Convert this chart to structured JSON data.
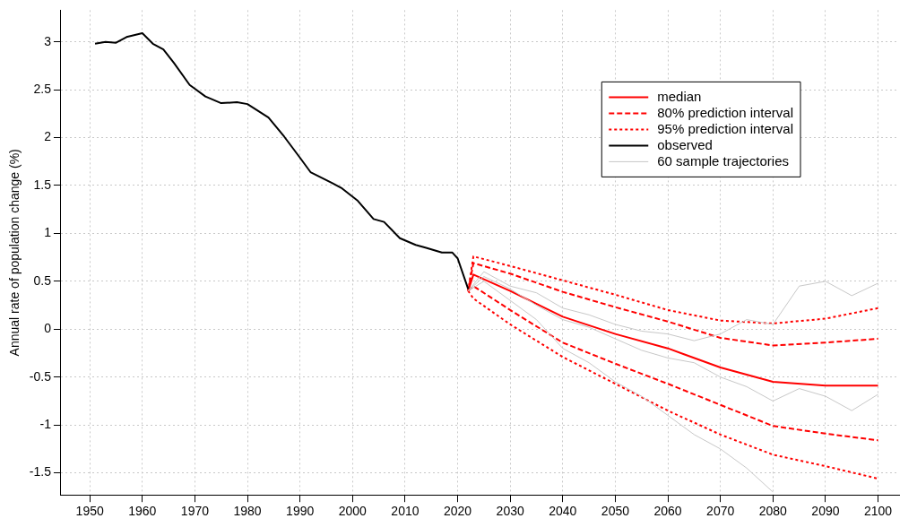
{
  "chart_data": {
    "type": "line",
    "ylabel": "Annual rate of population change (%)",
    "xlim": [
      1944.5,
      2104
    ],
    "xticks": [
      1950,
      1960,
      1970,
      1980,
      1990,
      2000,
      2010,
      2020,
      2030,
      2040,
      2050,
      2060,
      2070,
      2080,
      2090,
      2100
    ],
    "ylim": [
      -1.73,
      3.33
    ],
    "yticks": [
      -1.5,
      -1,
      -0.5,
      0,
      0.5,
      1,
      1.5,
      2,
      2.5,
      3
    ],
    "grid": true,
    "legend": "top right",
    "marker": "none",
    "series": [
      {
        "name": "median",
        "color": "#ff0000",
        "line_style": "solid",
        "x": [
          2022,
          2023,
          2030,
          2040,
          2050,
          2060,
          2070,
          2080,
          2090,
          2100
        ],
        "values": [
          0.4,
          0.57,
          0.4,
          0.13,
          -0.05,
          -0.2,
          -0.4,
          -0.55,
          -0.59,
          -0.59
        ]
      },
      {
        "name": "80% prediction interval",
        "color": "#ff0000",
        "line_style": "dashed",
        "x": [
          2022,
          2023,
          2030,
          2040,
          2050,
          2060,
          2070,
          2080,
          2090,
          2100
        ],
        "values": [
          0.4,
          0.69,
          0.58,
          0.39,
          0.23,
          0.08,
          -0.09,
          -0.17,
          -0.14,
          -0.1
        ]
      },
      {
        "color": "#ff0000",
        "line_style": "dashed",
        "x": [
          2022,
          2023,
          2030,
          2040,
          2050,
          2060,
          2070,
          2080,
          2090,
          2100
        ],
        "values": [
          0.4,
          0.45,
          0.2,
          -0.14,
          -0.36,
          -0.57,
          -0.79,
          -1.01,
          -1.09,
          -1.16
        ]
      },
      {
        "name": "95% prediction interval",
        "color": "#ff0000",
        "line_style": "dotted",
        "x": [
          2022,
          2023,
          2030,
          2040,
          2050,
          2060,
          2070,
          2080,
          2090,
          2100
        ],
        "values": [
          0.4,
          0.76,
          0.66,
          0.51,
          0.36,
          0.2,
          0.09,
          0.06,
          0.11,
          0.22
        ]
      },
      {
        "color": "#ff0000",
        "line_style": "dotted",
        "x": [
          2022,
          2023,
          2030,
          2040,
          2050,
          2060,
          2070,
          2080,
          2090,
          2100
        ],
        "values": [
          0.4,
          0.32,
          0.05,
          -0.29,
          -0.57,
          -0.85,
          -1.1,
          -1.31,
          -1.43,
          -1.56
        ]
      },
      {
        "name": "observed",
        "color": "#000000",
        "line_style": "solid",
        "x": [
          1951,
          1953,
          1955,
          1957,
          1960,
          1962,
          1964,
          1966,
          1969,
          1972,
          1975,
          1978,
          1980,
          1984,
          1987,
          1990,
          1992,
          1996,
          1998,
          2001,
          2004,
          2006,
          2009,
          2012,
          2014,
          2017,
          2019,
          2020,
          2022
        ],
        "values": [
          2.98,
          3.0,
          2.99,
          3.05,
          3.09,
          2.98,
          2.92,
          2.78,
          2.55,
          2.43,
          2.36,
          2.37,
          2.35,
          2.21,
          2.01,
          1.79,
          1.64,
          1.53,
          1.47,
          1.34,
          1.15,
          1.12,
          0.95,
          0.88,
          0.85,
          0.8,
          0.8,
          0.74,
          0.42
        ]
      },
      {
        "name": "60 sample trajectories",
        "color": "#c8c8c8",
        "line_style": "solid",
        "x": [
          2022,
          2025,
          2030,
          2035,
          2040,
          2045,
          2050,
          2055,
          2060,
          2065,
          2070,
          2075,
          2080,
          2085,
          2090,
          2095,
          2100
        ],
        "values": [
          0.4,
          0.6,
          0.45,
          0.38,
          0.22,
          0.15,
          0.05,
          -0.02,
          -0.05,
          -0.12,
          -0.05,
          0.1,
          0.05,
          0.45,
          0.5,
          0.35,
          0.48
        ]
      },
      {
        "color": "#c8c8c8",
        "line_style": "solid",
        "x": [
          2022,
          2025,
          2030,
          2035,
          2040,
          2045,
          2050,
          2055,
          2060,
          2065,
          2070,
          2075,
          2080
        ],
        "values": [
          0.4,
          0.5,
          0.3,
          0.1,
          -0.2,
          -0.35,
          -0.55,
          -0.7,
          -0.9,
          -1.1,
          -1.25,
          -1.45,
          -1.7
        ]
      },
      {
        "color": "#c8c8c8",
        "line_style": "solid",
        "x": [
          2022,
          2025,
          2030,
          2035,
          2040,
          2045,
          2050,
          2055,
          2060,
          2065,
          2070,
          2075,
          2080,
          2085,
          2090,
          2095,
          2100
        ],
        "values": [
          0.4,
          0.55,
          0.42,
          0.25,
          0.1,
          0.02,
          -0.1,
          -0.22,
          -0.3,
          -0.35,
          -0.5,
          -0.6,
          -0.75,
          -0.62,
          -0.7,
          -0.85,
          -0.68
        ]
      }
    ]
  }
}
